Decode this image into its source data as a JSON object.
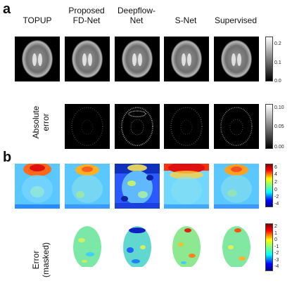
{
  "figure": {
    "panel_a": "a",
    "panel_b": "b",
    "columns": [
      "TOPUP",
      "Proposed\nFD-Net",
      "Deepflow-\nNet",
      "S-Net",
      "Supervised"
    ],
    "row_labels": {
      "abs_error": "Absolute\nerror",
      "error_masked": "Error\n(masked)"
    },
    "colorbars": {
      "brain_ticks": [
        "0.2",
        "0.1",
        "0.0"
      ],
      "abs_error_ticks": [
        "0.10",
        "0.05",
        "0.00"
      ],
      "field_ticks": [
        "6",
        "4",
        "2",
        "0",
        "-2",
        "-4"
      ],
      "error_ticks": [
        "2",
        "1",
        "0",
        "-1",
        "-2",
        "-3",
        "-4"
      ]
    },
    "colors": {
      "jet_low": "#00008f",
      "jet_mid": "#7fff7f",
      "jet_high": "#7f0000",
      "background": "#000000"
    }
  }
}
